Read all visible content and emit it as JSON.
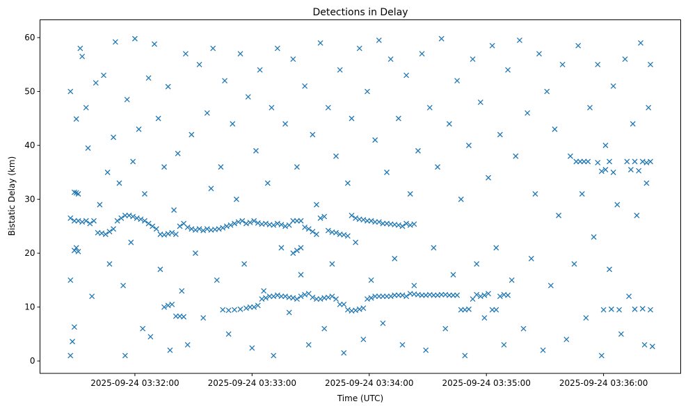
{
  "chart_data": {
    "type": "scatter",
    "title": "Detections in Delay",
    "xlabel": "Time (UTC)",
    "ylabel": "Bistatic Delay (km)",
    "x_units": "seconds after 2025-09-24 03:31:00 UTC",
    "xlim": [
      11.4,
      339.5
    ],
    "ylim": [
      -2.3,
      63.3
    ],
    "grid": false,
    "marker": "x",
    "color": "#1f77b4",
    "xticks": [
      {
        "value": 60,
        "label": "2025-09-24 03:32:00"
      },
      {
        "value": 120,
        "label": "2025-09-24 03:33:00"
      },
      {
        "value": 180,
        "label": "2025-09-24 03:34:00"
      },
      {
        "value": 240,
        "label": "2025-09-24 03:35:00"
      },
      {
        "value": 300,
        "label": "2025-09-24 03:36:00"
      }
    ],
    "yticks": [
      {
        "value": 0,
        "label": "0"
      },
      {
        "value": 10,
        "label": "10"
      },
      {
        "value": 20,
        "label": "20"
      },
      {
        "value": 30,
        "label": "30"
      },
      {
        "value": 40,
        "label": "40"
      },
      {
        "value": 50,
        "label": "50"
      },
      {
        "value": 60,
        "label": "60"
      }
    ],
    "points": [
      [
        27,
        50
      ],
      [
        27,
        15
      ],
      [
        28,
        3.6
      ],
      [
        27,
        1
      ],
      [
        29,
        6.3
      ],
      [
        30,
        44.9
      ],
      [
        32,
        58
      ],
      [
        33,
        56.5
      ],
      [
        35,
        47
      ],
      [
        36,
        39.5
      ],
      [
        38,
        12
      ],
      [
        40,
        51.6
      ],
      [
        42,
        29
      ],
      [
        44,
        53
      ],
      [
        46,
        35
      ],
      [
        47,
        18
      ],
      [
        49,
        41.5
      ],
      [
        50,
        59.2
      ],
      [
        52,
        33
      ],
      [
        54,
        14
      ],
      [
        55,
        1
      ],
      [
        56,
        48.5
      ],
      [
        58,
        22
      ],
      [
        59,
        37
      ],
      [
        60,
        59.8
      ],
      [
        62,
        43
      ],
      [
        64,
        6
      ],
      [
        65,
        31
      ],
      [
        67,
        52.5
      ],
      [
        68,
        4.5
      ],
      [
        70,
        58.8
      ],
      [
        72,
        45
      ],
      [
        73,
        17
      ],
      [
        75,
        36
      ],
      [
        77,
        50.9
      ],
      [
        78,
        2
      ],
      [
        80,
        28
      ],
      [
        82,
        38.5
      ],
      [
        84,
        13
      ],
      [
        86,
        57
      ],
      [
        87,
        3
      ],
      [
        89,
        42
      ],
      [
        91,
        20
      ],
      [
        93,
        55
      ],
      [
        95,
        8
      ],
      [
        97,
        46
      ],
      [
        99,
        32
      ],
      [
        100,
        58
      ],
      [
        102,
        15
      ],
      [
        104,
        36
      ],
      [
        106,
        52
      ],
      [
        108,
        5
      ],
      [
        110,
        44
      ],
      [
        112,
        30
      ],
      [
        114,
        57
      ],
      [
        116,
        18
      ],
      [
        118,
        49
      ],
      [
        120,
        2.4
      ],
      [
        122,
        39
      ],
      [
        124,
        54
      ],
      [
        126,
        13
      ],
      [
        128,
        33
      ],
      [
        130,
        47
      ],
      [
        131,
        1
      ],
      [
        133,
        58
      ],
      [
        135,
        21
      ],
      [
        137,
        44
      ],
      [
        139,
        9
      ],
      [
        141,
        56
      ],
      [
        143,
        36
      ],
      [
        145,
        16
      ],
      [
        147,
        51
      ],
      [
        149,
        3
      ],
      [
        151,
        42
      ],
      [
        153,
        29
      ],
      [
        155,
        59
      ],
      [
        157,
        6
      ],
      [
        159,
        47
      ],
      [
        161,
        18
      ],
      [
        163,
        38
      ],
      [
        165,
        54
      ],
      [
        167,
        1.5
      ],
      [
        169,
        33
      ],
      [
        171,
        45
      ],
      [
        173,
        22
      ],
      [
        175,
        58
      ],
      [
        177,
        4
      ],
      [
        179,
        50
      ],
      [
        181,
        15
      ],
      [
        183,
        41
      ],
      [
        185,
        59.5
      ],
      [
        187,
        7
      ],
      [
        189,
        35
      ],
      [
        191,
        56
      ],
      [
        193,
        19
      ],
      [
        195,
        45
      ],
      [
        197,
        3
      ],
      [
        199,
        53
      ],
      [
        201,
        31
      ],
      [
        203,
        14
      ],
      [
        205,
        39
      ],
      [
        207,
        57
      ],
      [
        209,
        2
      ],
      [
        211,
        47
      ],
      [
        213,
        21
      ],
      [
        215,
        36
      ],
      [
        217,
        59.8
      ],
      [
        219,
        6
      ],
      [
        221,
        44
      ],
      [
        223,
        16
      ],
      [
        225,
        52
      ],
      [
        227,
        30
      ],
      [
        229,
        1
      ],
      [
        231,
        40
      ],
      [
        233,
        56
      ],
      [
        235,
        18
      ],
      [
        237,
        48
      ],
      [
        239,
        8
      ],
      [
        241,
        34
      ],
      [
        243,
        58.5
      ],
      [
        245,
        21
      ],
      [
        247,
        42
      ],
      [
        249,
        3
      ],
      [
        251,
        54
      ],
      [
        253,
        15
      ],
      [
        255,
        38
      ],
      [
        257,
        59.5
      ],
      [
        259,
        6
      ],
      [
        261,
        46
      ],
      [
        263,
        19
      ],
      [
        265,
        31
      ],
      [
        267,
        57
      ],
      [
        269,
        2
      ],
      [
        271,
        50
      ],
      [
        273,
        14
      ],
      [
        275,
        43
      ],
      [
        277,
        27
      ],
      [
        279,
        55
      ],
      [
        281,
        4
      ],
      [
        283,
        38
      ],
      [
        285,
        18
      ],
      [
        287,
        58.5
      ],
      [
        289,
        31
      ],
      [
        291,
        8
      ],
      [
        293,
        47
      ],
      [
        295,
        23
      ],
      [
        297,
        55
      ],
      [
        299,
        1
      ],
      [
        301,
        40
      ],
      [
        303,
        17
      ],
      [
        305,
        51
      ],
      [
        307,
        29
      ],
      [
        309,
        5
      ],
      [
        311,
        56
      ],
      [
        313,
        12
      ],
      [
        315,
        44
      ],
      [
        317,
        27
      ],
      [
        319,
        59
      ],
      [
        321,
        3
      ],
      [
        323,
        47
      ],
      [
        325,
        2.7
      ],
      [
        324,
        55
      ],
      [
        322,
        33
      ],
      [
        27,
        26.5
      ],
      [
        29,
        26
      ],
      [
        31,
        26
      ],
      [
        33,
        25.8
      ],
      [
        35,
        26
      ],
      [
        37,
        25.5
      ],
      [
        39,
        26
      ],
      [
        41,
        23.8
      ],
      [
        43,
        23.7
      ],
      [
        45,
        23.5
      ],
      [
        47,
        24
      ],
      [
        49,
        24.5
      ],
      [
        51,
        26
      ],
      [
        53,
        26.5
      ],
      [
        55,
        27
      ],
      [
        57,
        27
      ],
      [
        59,
        26.8
      ],
      [
        61,
        26.5
      ],
      [
        63,
        26.3
      ],
      [
        65,
        26
      ],
      [
        67,
        25.5
      ],
      [
        69,
        25
      ],
      [
        71,
        24.5
      ],
      [
        73,
        23.5
      ],
      [
        75,
        23.4
      ],
      [
        77,
        23.6
      ],
      [
        79,
        23.8
      ],
      [
        81,
        23.5
      ],
      [
        83,
        25
      ],
      [
        85,
        25.5
      ],
      [
        87,
        24.8
      ],
      [
        89,
        24.5
      ],
      [
        91,
        24.3
      ],
      [
        93,
        24.5
      ],
      [
        95,
        24.2
      ],
      [
        97,
        24.5
      ],
      [
        99,
        24.3
      ],
      [
        101,
        24.4
      ],
      [
        103,
        24.5
      ],
      [
        105,
        24.7
      ],
      [
        107,
        25
      ],
      [
        109,
        25.2
      ],
      [
        111,
        25.5
      ],
      [
        113,
        25.8
      ],
      [
        115,
        26
      ],
      [
        117,
        25.5
      ],
      [
        119,
        25.7
      ],
      [
        121,
        26
      ],
      [
        123,
        25.6
      ],
      [
        125,
        25.4
      ],
      [
        127,
        25.5
      ],
      [
        129,
        25.3
      ],
      [
        131,
        25.2
      ],
      [
        133,
        25.5
      ],
      [
        135,
        25.3
      ],
      [
        137,
        25
      ],
      [
        139,
        25.2
      ],
      [
        141,
        26
      ],
      [
        143,
        26
      ],
      [
        145,
        26
      ],
      [
        147,
        24.8
      ],
      [
        149,
        24.5
      ],
      [
        151,
        24
      ],
      [
        153,
        23.5
      ],
      [
        155,
        26.5
      ],
      [
        157,
        26.8
      ],
      [
        159,
        24.2
      ],
      [
        161,
        23.9
      ],
      [
        163,
        23.8
      ],
      [
        165,
        23.5
      ],
      [
        167,
        23.4
      ],
      [
        169,
        23.2
      ],
      [
        171,
        27
      ],
      [
        173,
        26.5
      ],
      [
        175,
        26.3
      ],
      [
        177,
        26.2
      ],
      [
        179,
        26
      ],
      [
        181,
        26
      ],
      [
        183,
        25.8
      ],
      [
        185,
        25.8
      ],
      [
        187,
        25.5
      ],
      [
        189,
        25.5
      ],
      [
        191,
        25.4
      ],
      [
        193,
        25.3
      ],
      [
        195,
        25.2
      ],
      [
        197,
        25
      ],
      [
        199,
        25.5
      ],
      [
        201,
        25.2
      ],
      [
        203,
        25.4
      ],
      [
        141,
        20
      ],
      [
        143,
        20.5
      ],
      [
        145,
        21
      ],
      [
        29,
        20.5
      ],
      [
        30,
        21
      ],
      [
        31,
        20.3
      ],
      [
        29,
        31.3
      ],
      [
        30,
        31.2
      ],
      [
        31,
        31
      ],
      [
        75,
        10
      ],
      [
        77,
        10.3
      ],
      [
        79,
        10.5
      ],
      [
        81,
        8.3
      ],
      [
        83,
        8.3
      ],
      [
        85,
        8.2
      ],
      [
        105,
        9.5
      ],
      [
        108,
        9.4
      ],
      [
        111,
        9.5
      ],
      [
        114,
        9.6
      ],
      [
        117,
        9.8
      ],
      [
        119,
        10
      ],
      [
        121,
        10
      ],
      [
        123,
        10.3
      ],
      [
        125,
        11.5
      ],
      [
        127,
        11.7
      ],
      [
        129,
        12
      ],
      [
        131,
        12
      ],
      [
        133,
        12.2
      ],
      [
        135,
        12
      ],
      [
        137,
        12
      ],
      [
        139,
        11.8
      ],
      [
        141,
        11.7
      ],
      [
        143,
        11.5
      ],
      [
        145,
        12
      ],
      [
        147,
        12.3
      ],
      [
        149,
        12.5
      ],
      [
        151,
        11.8
      ],
      [
        153,
        11.5
      ],
      [
        155,
        11.5
      ],
      [
        157,
        11.7
      ],
      [
        159,
        11.8
      ],
      [
        161,
        12
      ],
      [
        163,
        11.5
      ],
      [
        165,
        10.5
      ],
      [
        167,
        10.5
      ],
      [
        169,
        9.5
      ],
      [
        171,
        9.3
      ],
      [
        173,
        9.4
      ],
      [
        175,
        9.6
      ],
      [
        177,
        9.8
      ],
      [
        179,
        11.5
      ],
      [
        181,
        11.7
      ],
      [
        183,
        12
      ],
      [
        185,
        12
      ],
      [
        187,
        12
      ],
      [
        189,
        12
      ],
      [
        191,
        12
      ],
      [
        193,
        12.2
      ],
      [
        195,
        12.2
      ],
      [
        197,
        12.2
      ],
      [
        199,
        12
      ],
      [
        201,
        12.5
      ],
      [
        203,
        12.4
      ],
      [
        205,
        12.3
      ],
      [
        207,
        12.2
      ],
      [
        209,
        12.2
      ],
      [
        211,
        12.3
      ],
      [
        213,
        12.2
      ],
      [
        215,
        12.2
      ],
      [
        217,
        12.3
      ],
      [
        219,
        12.3
      ],
      [
        221,
        12.2
      ],
      [
        223,
        12.2
      ],
      [
        225,
        12.2
      ],
      [
        227,
        9.5
      ],
      [
        229,
        9.5
      ],
      [
        231,
        9.6
      ],
      [
        233,
        11.5
      ],
      [
        235,
        12.3
      ],
      [
        237,
        12
      ],
      [
        239,
        12.2
      ],
      [
        241,
        12.5
      ],
      [
        243,
        9.5
      ],
      [
        245,
        9.5
      ],
      [
        247,
        12
      ],
      [
        249,
        12.3
      ],
      [
        251,
        12.2
      ],
      [
        286,
        37
      ],
      [
        288,
        37
      ],
      [
        290,
        37
      ],
      [
        292,
        37
      ],
      [
        297,
        36.8
      ],
      [
        299,
        35.2
      ],
      [
        301,
        35.5
      ],
      [
        303,
        37
      ],
      [
        305,
        35
      ],
      [
        312,
        37
      ],
      [
        314,
        35.5
      ],
      [
        316,
        37
      ],
      [
        318,
        35.3
      ],
      [
        320,
        37
      ],
      [
        322,
        36.8
      ],
      [
        324,
        37
      ],
      [
        300,
        9.5
      ],
      [
        304,
        9.6
      ],
      [
        308,
        9.5
      ],
      [
        316,
        9.6
      ],
      [
        320,
        9.7
      ],
      [
        324,
        9.5
      ]
    ]
  }
}
